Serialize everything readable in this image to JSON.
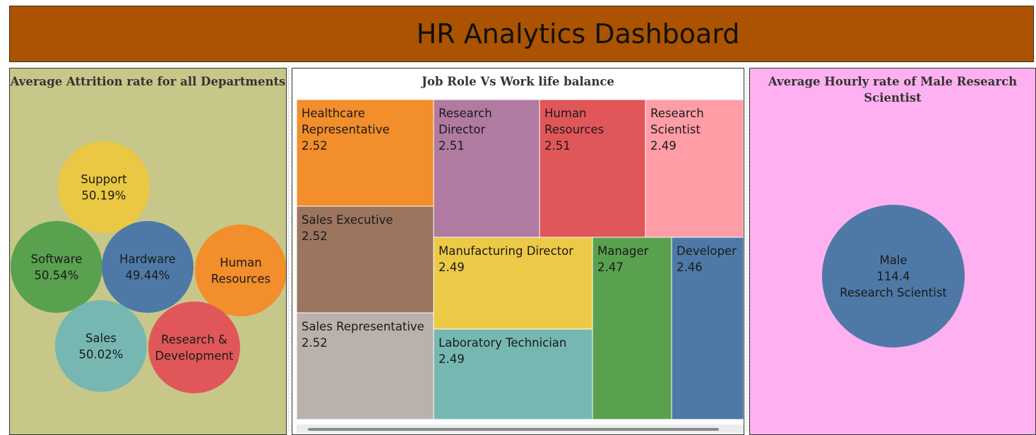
{
  "header": {
    "title": "HR Analytics Dashboard",
    "background": "#ab5300"
  },
  "chart_data": [
    {
      "type": "packed_bubble",
      "title": "Average Attrition rate for all Departments",
      "background": "#c8c78a",
      "bubbles": [
        {
          "label": "Support",
          "value_label": "50.19%",
          "value": 50.19,
          "color": "#eac843"
        },
        {
          "label": "Software",
          "value_label": "50.54%",
          "value": 50.54,
          "color": "#59a14f"
        },
        {
          "label": "Hardware",
          "value_label": "49.44%",
          "value": 49.44,
          "color": "#4e79a7"
        },
        {
          "label": "Human Resources",
          "label_lines": [
            "Human",
            "Resources"
          ],
          "value_label": "",
          "color": "#f28e2b"
        },
        {
          "label": "Sales",
          "value_label": "50.02%",
          "value": 50.02,
          "color": "#76b7b2"
        },
        {
          "label": "Research & Development",
          "label_lines": [
            "Research &",
            "Development"
          ],
          "value_label": "",
          "color": "#e15759"
        }
      ]
    },
    {
      "type": "treemap",
      "title": "Job Role Vs Work life balance",
      "cells": [
        {
          "label_lines": [
            "Healthcare",
            "Representative"
          ],
          "value": 2.52,
          "value_label": "2.52",
          "color": "#f28e2b"
        },
        {
          "label_lines": [
            "Research",
            "Director"
          ],
          "value": 2.51,
          "value_label": "2.51",
          "color": "#b07aa1"
        },
        {
          "label_lines": [
            "Human",
            "Resources"
          ],
          "value": 2.51,
          "value_label": "2.51",
          "color": "#e15759"
        },
        {
          "label_lines": [
            "Research",
            "Scientist"
          ],
          "value": 2.49,
          "value_label": "2.49",
          "color": "#ff9da7"
        },
        {
          "label_lines": [
            "Sales Executive"
          ],
          "value": 2.52,
          "value_label": "2.52",
          "color": "#9c755f"
        },
        {
          "label_lines": [
            "Manufacturing Director"
          ],
          "value": 2.49,
          "value_label": "2.49",
          "color": "#edc948"
        },
        {
          "label_lines": [
            "Manager"
          ],
          "value": 2.47,
          "value_label": "2.47",
          "color": "#59a14f"
        },
        {
          "label_lines": [
            "Developer"
          ],
          "value": 2.46,
          "value_label": "2.46",
          "color": "#4e79a7"
        },
        {
          "label_lines": [
            "Sales Representative"
          ],
          "value": 2.52,
          "value_label": "2.52",
          "color": "#bab0ac"
        },
        {
          "label_lines": [
            "Laboratory Technician"
          ],
          "value": 2.49,
          "value_label": "2.49",
          "color": "#76b7b2"
        }
      ]
    },
    {
      "type": "bubble",
      "title": "Average Hourly rate of Male Research Scientist",
      "title_lines": [
        "Average Hourly rate of Male Research",
        "Scientist"
      ],
      "background": "#ffb0f0",
      "bubble": {
        "gender": "Male",
        "value": 114.4,
        "value_label": "114.4",
        "role": "Research Scientist",
        "color": "#4e79a7"
      }
    }
  ]
}
